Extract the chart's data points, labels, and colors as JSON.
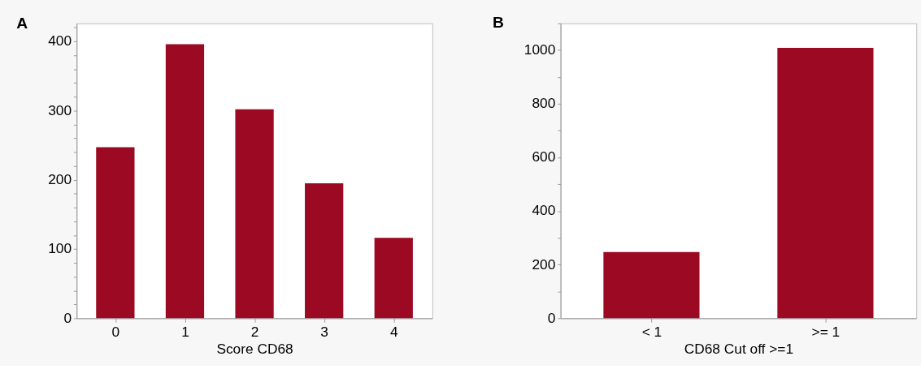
{
  "chart_data": [
    {
      "type": "bar",
      "title": "A",
      "xlabel": "Score CD68",
      "categories": [
        "0",
        "1",
        "2",
        "3",
        "4"
      ],
      "values": [
        247,
        396,
        302,
        195,
        116
      ],
      "color": "#9b0a22",
      "ylim": [
        0,
        426
      ],
      "yticks": [
        0,
        {
          "value": 20,
          "label": null
        },
        {
          "value": 40,
          "label": null
        },
        {
          "value": 60,
          "label": null
        },
        {
          "value": 80,
          "label": null
        },
        100,
        {
          "value": 120,
          "label": null
        },
        {
          "value": 140,
          "label": null
        },
        {
          "value": 160,
          "label": null
        },
        {
          "value": 180,
          "label": null
        },
        200,
        {
          "value": 220,
          "label": null
        },
        {
          "value": 240,
          "label": null
        },
        {
          "value": 260,
          "label": null
        },
        {
          "value": 280,
          "label": null
        },
        300,
        {
          "value": 320,
          "label": null
        },
        {
          "value": 340,
          "label": null
        },
        {
          "value": 360,
          "label": null
        },
        {
          "value": 380,
          "label": null
        },
        400,
        {
          "value": 420,
          "label": null
        }
      ],
      "grid": false
    },
    {
      "type": "bar",
      "title": "B",
      "xlabel": "CD68 Cut off >=1",
      "categories": [
        "< 1",
        ">= 1"
      ],
      "values": [
        247,
        1009
      ],
      "color": "#9b0a22",
      "ylim": [
        0,
        1100
      ],
      "yticks": [
        0,
        {
          "value": 100,
          "label": null
        },
        200,
        {
          "value": 300,
          "label": null
        },
        400,
        {
          "value": 500,
          "label": null
        },
        600,
        {
          "value": 700,
          "label": null
        },
        800,
        {
          "value": 900,
          "label": null
        },
        1000,
        {
          "value": 1100,
          "label": null
        }
      ],
      "grid": false
    }
  ]
}
